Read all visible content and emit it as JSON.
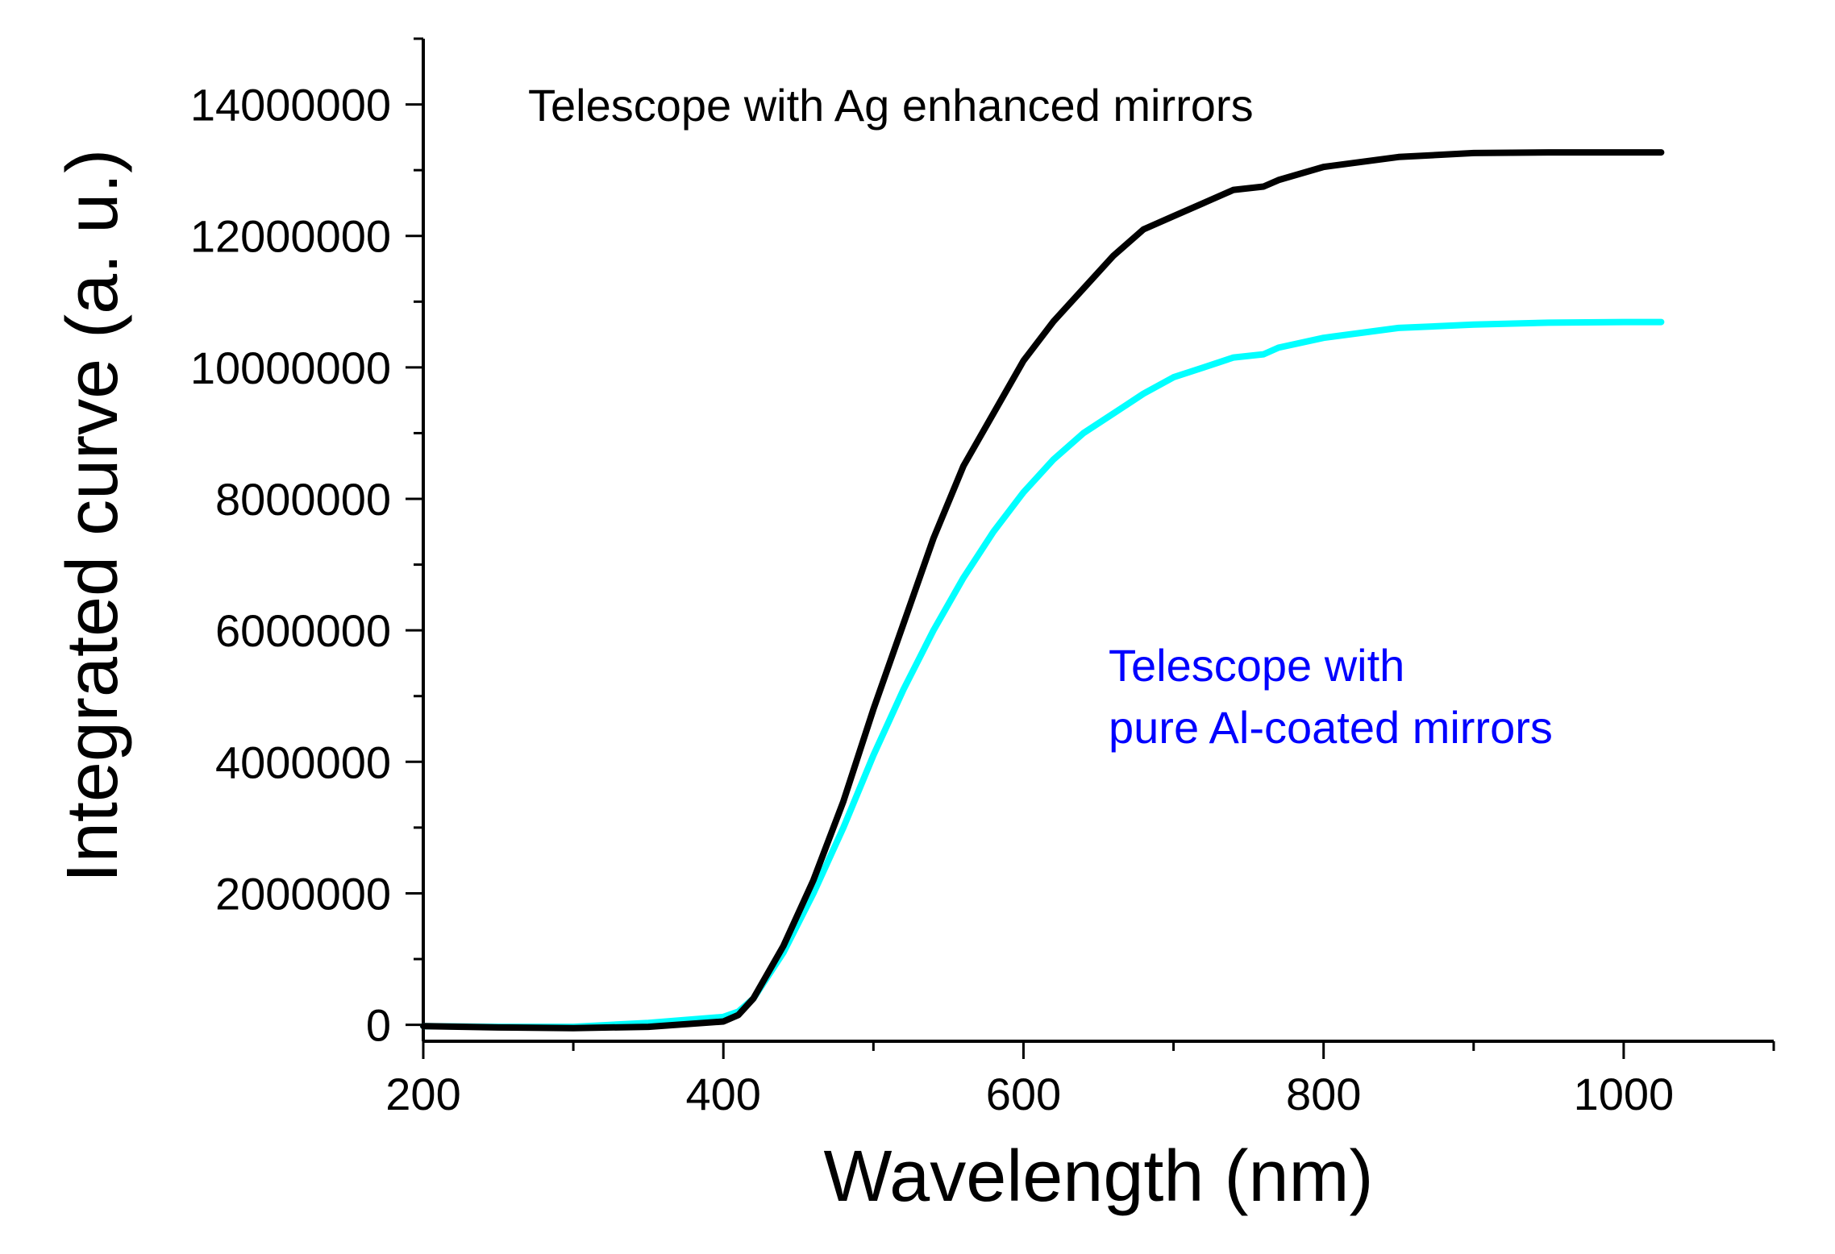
{
  "chart_data": {
    "type": "line",
    "title": "",
    "xlabel": "Wavelength (nm)",
    "ylabel": "Integrated curve (a. u.)",
    "xlim": [
      200,
      1100
    ],
    "ylim": [
      -250000,
      15000000
    ],
    "x_ticks": [
      200,
      400,
      600,
      800,
      1000
    ],
    "y_ticks": [
      0,
      2000000,
      4000000,
      6000000,
      8000000,
      10000000,
      12000000,
      14000000
    ],
    "x_tick_labels": [
      "200",
      "400",
      "600",
      "800",
      "1000"
    ],
    "y_tick_labels": [
      "0",
      "2000000",
      "4000000",
      "6000000",
      "8000000",
      "10000000",
      "12000000",
      "14000000"
    ],
    "grid": false,
    "series": [
      {
        "name": "Telescope with Ag enhanced mirrors",
        "color": "#000000",
        "x": [
          200,
          250,
          300,
          350,
          400,
          410,
          420,
          440,
          460,
          480,
          500,
          520,
          540,
          560,
          580,
          600,
          620,
          640,
          660,
          680,
          700,
          720,
          740,
          760,
          770,
          800,
          850,
          900,
          950,
          1000,
          1025
        ],
        "y": [
          -20000,
          -40000,
          -50000,
          -30000,
          50000,
          150000,
          400000,
          1200000,
          2200000,
          3400000,
          4800000,
          6100000,
          7400000,
          8500000,
          9300000,
          10100000,
          10700000,
          11200000,
          11700000,
          12100000,
          12300000,
          12500000,
          12700000,
          12750000,
          12850000,
          13050000,
          13200000,
          13260000,
          13270000,
          13270000,
          13270000
        ]
      },
      {
        "name": "Telescope with pure Al-coated mirrors",
        "color": "#00ffff",
        "x": [
          200,
          250,
          300,
          350,
          400,
          410,
          420,
          440,
          460,
          480,
          500,
          520,
          540,
          560,
          580,
          600,
          620,
          640,
          660,
          680,
          700,
          720,
          740,
          760,
          770,
          800,
          850,
          900,
          950,
          1000,
          1025
        ],
        "y": [
          -20000,
          -30000,
          -30000,
          30000,
          120000,
          200000,
          400000,
          1100000,
          2000000,
          3000000,
          4100000,
          5100000,
          6000000,
          6800000,
          7500000,
          8100000,
          8600000,
          9000000,
          9300000,
          9600000,
          9850000,
          10000000,
          10150000,
          10200000,
          10300000,
          10450000,
          10600000,
          10650000,
          10680000,
          10690000,
          10690000
        ]
      }
    ],
    "annotations": [
      {
        "text": "Telescope with Ag enhanced mirrors",
        "color": "#000000"
      },
      {
        "text": "Telescope with",
        "color": "#0000ff"
      },
      {
        "text": "pure Al-coated mirrors",
        "color": "#0000ff"
      }
    ]
  }
}
